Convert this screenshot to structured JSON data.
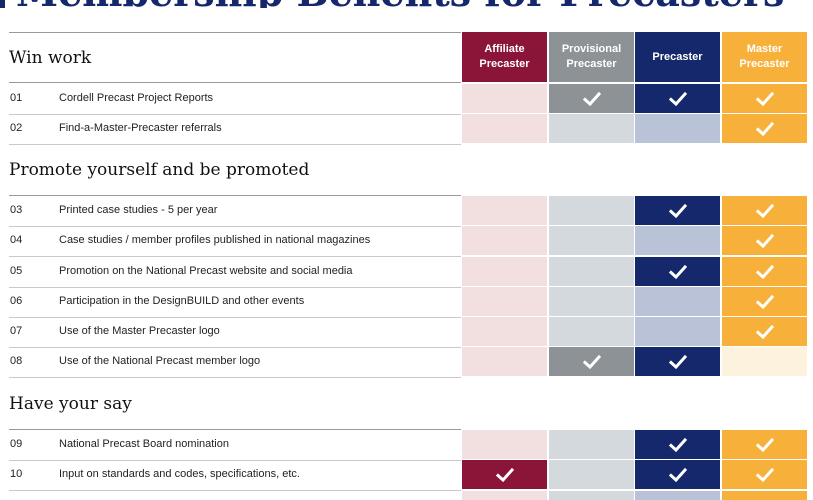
{
  "page_title": "Membership Benefits for Precasters",
  "columns": [
    {
      "line1": "Affiliate",
      "line2": "Precaster",
      "header_color": "#8a1538",
      "on": "#8a1538",
      "off": "#f2dfdf"
    },
    {
      "line1": "Provisional",
      "line2": "Precaster",
      "header_color": "#8d9296",
      "on": "#8d9296",
      "off": "#d4d9de"
    },
    {
      "line1": "Precaster",
      "line2": "",
      "header_color": "#15286b",
      "on": "#15286b",
      "off": "#b9c2d6"
    },
    {
      "line1": "Master",
      "line2": "Precaster",
      "header_color": "#f7b13b",
      "on": "#f7b13b",
      "off": "#fdf2de"
    }
  ],
  "sections": [
    {
      "title": "Win work",
      "rows": [
        {
          "num": "01",
          "text": "Cordell Precast Project Reports",
          "checks": [
            false,
            true,
            true,
            true
          ]
        },
        {
          "num": "02",
          "text": "Find-a-Master-Precaster referrals",
          "checks": [
            false,
            false,
            false,
            true
          ],
          "on": [
            false,
            false,
            false,
            true
          ]
        }
      ]
    },
    {
      "title": "Promote yourself and be promoted",
      "rows": [
        {
          "num": "03",
          "text": "Printed case studies - 5 per year",
          "checks": [
            false,
            false,
            true,
            true
          ]
        },
        {
          "num": "04",
          "text": "Case studies / member profiles published in national magazines",
          "checks": [
            false,
            false,
            false,
            true
          ]
        },
        {
          "num": "05",
          "text": "Promotion on the National Precast website and social media",
          "checks": [
            false,
            false,
            true,
            true
          ]
        },
        {
          "num": "06",
          "text": "Participation in the DesignBUILD and other events",
          "checks": [
            false,
            false,
            false,
            true
          ]
        },
        {
          "num": "07",
          "text": "Use of the Master Precaster logo",
          "checks": [
            false,
            false,
            false,
            true
          ]
        },
        {
          "num": "08",
          "text": "Use of the National Precast member logo",
          "checks": [
            false,
            true,
            true,
            false
          ]
        }
      ]
    },
    {
      "title": "Have your say",
      "rows": [
        {
          "num": "09",
          "text": "National Precast Board nomination",
          "checks": [
            false,
            false,
            true,
            true
          ]
        },
        {
          "num": "10",
          "text": "Input on standards and codes, specifications, etc.",
          "checks": [
            true,
            false,
            true,
            true
          ]
        }
      ]
    }
  ]
}
